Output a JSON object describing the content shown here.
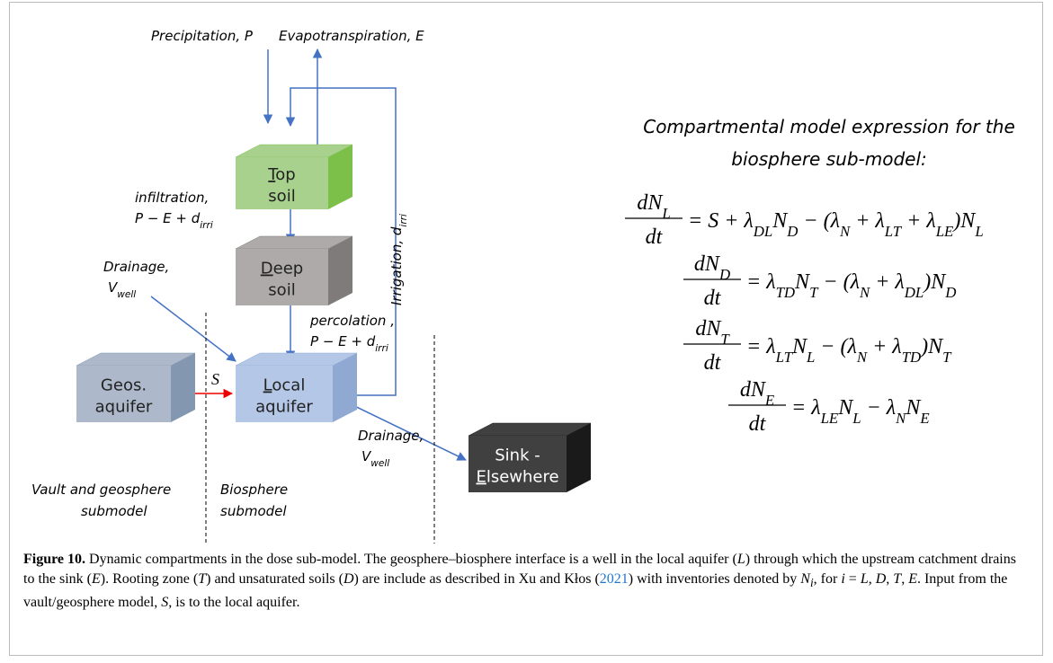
{
  "figure": {
    "labels": {
      "precipitation": "Precipitation, P",
      "evapotranspiration": "Evapotranspiration, E",
      "infiltration": [
        "infiltration,",
        "P − E + d",
        "irri"
      ],
      "drainage_in": [
        "Drainage,",
        "V",
        "well"
      ],
      "percolation": [
        "percolation ,",
        "P − E + d",
        "irri"
      ],
      "irrigation": [
        "Irrigation, d",
        "irri"
      ],
      "source": "S",
      "drainage_out": [
        "Drainage,",
        "V",
        "well"
      ],
      "vault": [
        "Vault and geosphere",
        "submodel"
      ],
      "biosphere": [
        "Biosphere",
        "submodel"
      ]
    },
    "boxes": [
      {
        "lines": [
          "Top",
          "soil"
        ],
        "underline": [
          0,
          0
        ],
        "color": "#a9d18e",
        "side": "#7cc04a"
      },
      {
        "lines": [
          "Deep",
          "soil"
        ],
        "underline": [
          0,
          0
        ],
        "color": "#aeaaaa",
        "side": "#7f7b7b"
      },
      {
        "lines": [
          "Geos.",
          "aquifer"
        ],
        "color": "#adb9ca",
        "side": "#8497b0"
      },
      {
        "lines": [
          "Local",
          "aquifer"
        ],
        "underline": [
          0,
          0
        ],
        "color": "#b4c7e7",
        "side": "#8fa9d3"
      },
      {
        "lines": [
          "Sink -",
          "Elsewhere"
        ],
        "underline": [
          1,
          0
        ],
        "color": "#404040",
        "side": "#1a1a1a",
        "text_color": "#ffffff"
      }
    ],
    "heading": [
      "Compartmental model expression for the",
      "biosphere sub-model:"
    ],
    "equations": [
      {
        "num": [
          "dN",
          "L"
        ],
        "den": "dt",
        "rhs": [
          [
            "= S + λ",
            "DL"
          ],
          [
            "N",
            "D"
          ],
          [
            " − (λ",
            "N"
          ],
          [
            " + λ",
            "LT"
          ],
          [
            " + λ",
            "LE"
          ],
          [
            ")N",
            "L"
          ]
        ]
      },
      {
        "num": [
          "dN",
          "D"
        ],
        "den": "dt",
        "rhs": [
          [
            "= λ",
            "TD"
          ],
          [
            "N",
            "T"
          ],
          [
            " − (λ",
            "N"
          ],
          [
            " + λ",
            "DL"
          ],
          [
            ")N",
            "D"
          ]
        ]
      },
      {
        "num": [
          "dN",
          "T"
        ],
        "den": "dt",
        "rhs": [
          [
            "= λ",
            "LT"
          ],
          [
            "N",
            "L"
          ],
          [
            " − (λ",
            "N"
          ],
          [
            " + λ",
            "TD"
          ],
          [
            ")N",
            "T"
          ]
        ]
      },
      {
        "num": [
          "dN",
          "E"
        ],
        "den": "dt",
        "rhs": [
          [
            "= λ",
            "LE"
          ],
          [
            "N",
            "L"
          ],
          [
            " − λ",
            "N"
          ],
          [
            "N",
            "E"
          ]
        ]
      }
    ]
  },
  "caption": {
    "label": "Figure 10.",
    "parts": [
      [
        " Dynamic compartments in the dose sub-model. The geosphere–biosphere interface is a well in the local aquifer (",
        "r"
      ],
      [
        "L",
        "i"
      ],
      [
        ") through which the upstream catchment drains to the sink (",
        "r"
      ],
      [
        "E",
        "i"
      ],
      [
        "). Rooting zone (",
        "r"
      ],
      [
        "T",
        "i"
      ],
      [
        ") and unsaturated soils (",
        "r"
      ],
      [
        "D",
        "i"
      ],
      [
        ") are include as described in Xu and Kłos (",
        "r"
      ],
      [
        "2021",
        "link"
      ],
      [
        ") with inventories denoted by ",
        "r"
      ],
      [
        "N",
        "i"
      ],
      [
        "i",
        "sub"
      ],
      [
        ", for ",
        "r"
      ],
      [
        "i",
        "i"
      ],
      [
        " = ",
        "r"
      ],
      [
        "L",
        "i"
      ],
      [
        ", ",
        "r"
      ],
      [
        "D",
        "i"
      ],
      [
        ", ",
        "r"
      ],
      [
        "T",
        "i"
      ],
      [
        ", ",
        "r"
      ],
      [
        "E",
        "i"
      ],
      [
        ". Input from the vault/geosphere model, ",
        "r"
      ],
      [
        "S",
        "i"
      ],
      [
        ", is to the local aquifer.",
        "r"
      ]
    ]
  }
}
